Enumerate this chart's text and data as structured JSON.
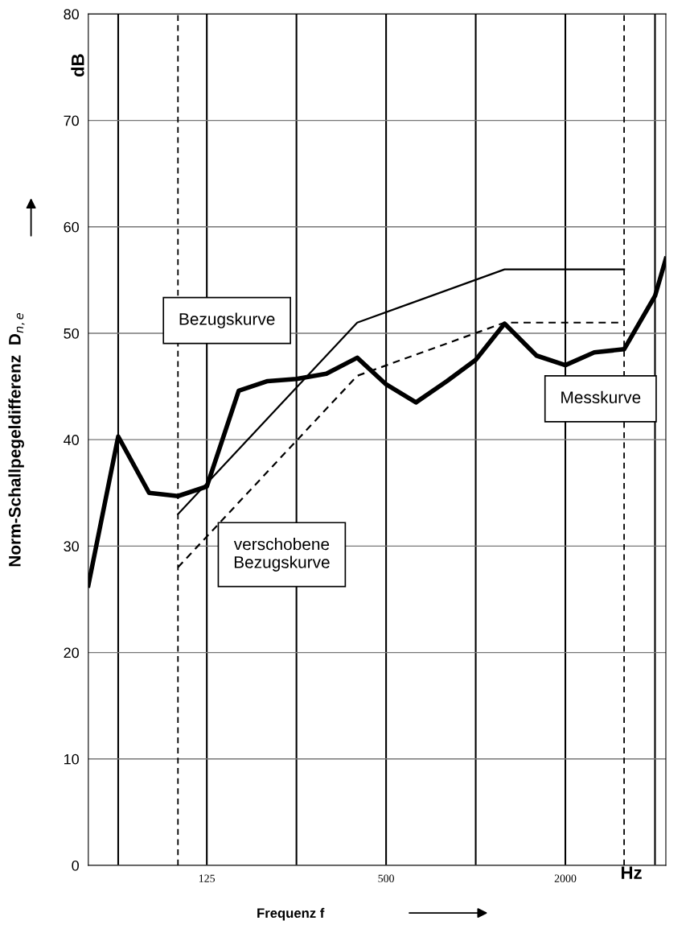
{
  "chart_data": {
    "type": "line",
    "xlabel": "Frequenz f",
    "ylabel": "Norm-Schallpegeldifferenz  D$_{n,e}$",
    "log": "x",
    "xlim": [
      50,
      4350
    ],
    "ylim": [
      0,
      80
    ],
    "xticks": [
      {
        "value": 63,
        "label": null
      },
      125,
      {
        "value": 250,
        "label": null
      },
      500,
      {
        "value": 1000,
        "label": null
      },
      2000,
      {
        "value": 4000,
        "label": null
      }
    ],
    "yticks": [
      0,
      10,
      20,
      30,
      40,
      50,
      60,
      70,
      80
    ],
    "grid": true,
    "legend": false,
    "marker": "none",
    "series": [
      {
        "name": "Messkurve",
        "color": "#000000",
        "line_style": "solid",
        "x": [
          50,
          63,
          80,
          100,
          125,
          160,
          200,
          250,
          315,
          400,
          500,
          630,
          800,
          1000,
          1250,
          1600,
          2000,
          2500,
          3150,
          4000,
          4350
        ],
        "values": [
          26.3,
          40.3,
          35,
          34.7,
          35.6,
          44.6,
          45.5,
          45.7,
          46.2,
          47.7,
          45.2,
          43.5,
          45.5,
          47.5,
          50.9,
          47.9,
          47,
          48.2,
          48.5,
          53.5,
          57
        ]
      },
      {
        "name": "Bezugskurve",
        "color": "#000000",
        "line_style": "solid",
        "x": [
          100,
          400,
          1250,
          3150
        ],
        "values": [
          33,
          51,
          56,
          56
        ]
      },
      {
        "name": "verschobene\nBezugskurve",
        "color": "#000000",
        "line_style": "dashed",
        "x": [
          100,
          400,
          1250,
          3150
        ],
        "values": [
          28,
          46,
          51,
          51
        ]
      }
    ],
    "ref_lines": [
      {
        "axis": "x",
        "value": 100,
        "label": null,
        "color": "#000000",
        "line_style": "dashed"
      },
      {
        "axis": "x",
        "value": 3150,
        "label": null,
        "color": "#000000",
        "line_style": "dashed"
      }
    ],
    "annotations": [
      "dB",
      "Hz"
    ]
  }
}
